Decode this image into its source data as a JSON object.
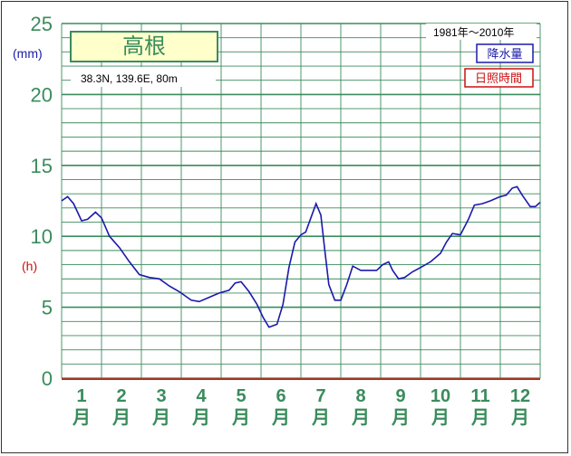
{
  "chart_data": {
    "type": "line",
    "title": "高根",
    "subtitle": "38.3N, 139.6E, 80m",
    "period": "1981年～2010年",
    "legend": [
      {
        "label": "降水量",
        "color": "#1a1aaa"
      },
      {
        "label": "日照時間",
        "color": "#cc1111"
      }
    ],
    "y_unit_left": "(mm)",
    "y_unit_sunshine": "(h)",
    "yticks": [
      0,
      5,
      10,
      15,
      20,
      25
    ],
    "ylim": [
      0,
      25
    ],
    "xlim": [
      0,
      12
    ],
    "months": [
      "1\n月",
      "2\n月",
      "3\n月",
      "4\n月",
      "5\n月",
      "6\n月",
      "7\n月",
      "8\n月",
      "9\n月",
      "10\n月",
      "11\n月",
      "12\n月"
    ],
    "grid": true,
    "colors": {
      "line": "#1a1aaa",
      "grid": "#3a8c5c",
      "baseline": "#b03020",
      "label": "#3a8c5c"
    },
    "series": [
      {
        "values": [
          [
            0.0,
            12.5
          ],
          [
            0.15,
            12.8
          ],
          [
            0.3,
            12.3
          ],
          [
            0.5,
            11.1
          ],
          [
            0.65,
            11.2
          ],
          [
            0.85,
            11.7
          ],
          [
            1.0,
            11.3
          ],
          [
            1.2,
            10.0
          ],
          [
            1.45,
            9.2
          ],
          [
            1.7,
            8.2
          ],
          [
            1.95,
            7.3
          ],
          [
            2.2,
            7.1
          ],
          [
            2.45,
            7.0
          ],
          [
            2.7,
            6.5
          ],
          [
            2.95,
            6.1
          ],
          [
            3.25,
            5.5
          ],
          [
            3.45,
            5.4
          ],
          [
            3.7,
            5.7
          ],
          [
            3.95,
            6.0
          ],
          [
            4.2,
            6.2
          ],
          [
            4.35,
            6.7
          ],
          [
            4.5,
            6.8
          ],
          [
            4.7,
            6.1
          ],
          [
            4.9,
            5.2
          ],
          [
            5.05,
            4.3
          ],
          [
            5.2,
            3.6
          ],
          [
            5.4,
            3.8
          ],
          [
            5.55,
            5.2
          ],
          [
            5.7,
            7.8
          ],
          [
            5.85,
            9.6
          ],
          [
            6.0,
            10.1
          ],
          [
            6.12,
            10.3
          ],
          [
            6.25,
            11.3
          ],
          [
            6.38,
            12.3
          ],
          [
            6.5,
            11.5
          ],
          [
            6.6,
            9.0
          ],
          [
            6.7,
            6.6
          ],
          [
            6.85,
            5.5
          ],
          [
            7.0,
            5.5
          ],
          [
            7.15,
            6.6
          ],
          [
            7.3,
            7.9
          ],
          [
            7.5,
            7.6
          ],
          [
            7.7,
            7.6
          ],
          [
            7.9,
            7.6
          ],
          [
            8.05,
            8.0
          ],
          [
            8.2,
            8.2
          ],
          [
            8.3,
            7.6
          ],
          [
            8.45,
            7.0
          ],
          [
            8.6,
            7.1
          ],
          [
            8.8,
            7.5
          ],
          [
            9.0,
            7.8
          ],
          [
            9.25,
            8.2
          ],
          [
            9.5,
            8.8
          ],
          [
            9.65,
            9.6
          ],
          [
            9.8,
            10.2
          ],
          [
            10.0,
            10.1
          ],
          [
            10.2,
            11.2
          ],
          [
            10.35,
            12.2
          ],
          [
            10.55,
            12.3
          ],
          [
            10.75,
            12.5
          ],
          [
            11.0,
            12.8
          ],
          [
            11.15,
            12.9
          ],
          [
            11.3,
            13.4
          ],
          [
            11.42,
            13.5
          ],
          [
            11.55,
            12.9
          ],
          [
            11.75,
            12.1
          ],
          [
            11.88,
            12.1
          ],
          [
            12.0,
            12.4
          ]
        ]
      }
    ]
  }
}
